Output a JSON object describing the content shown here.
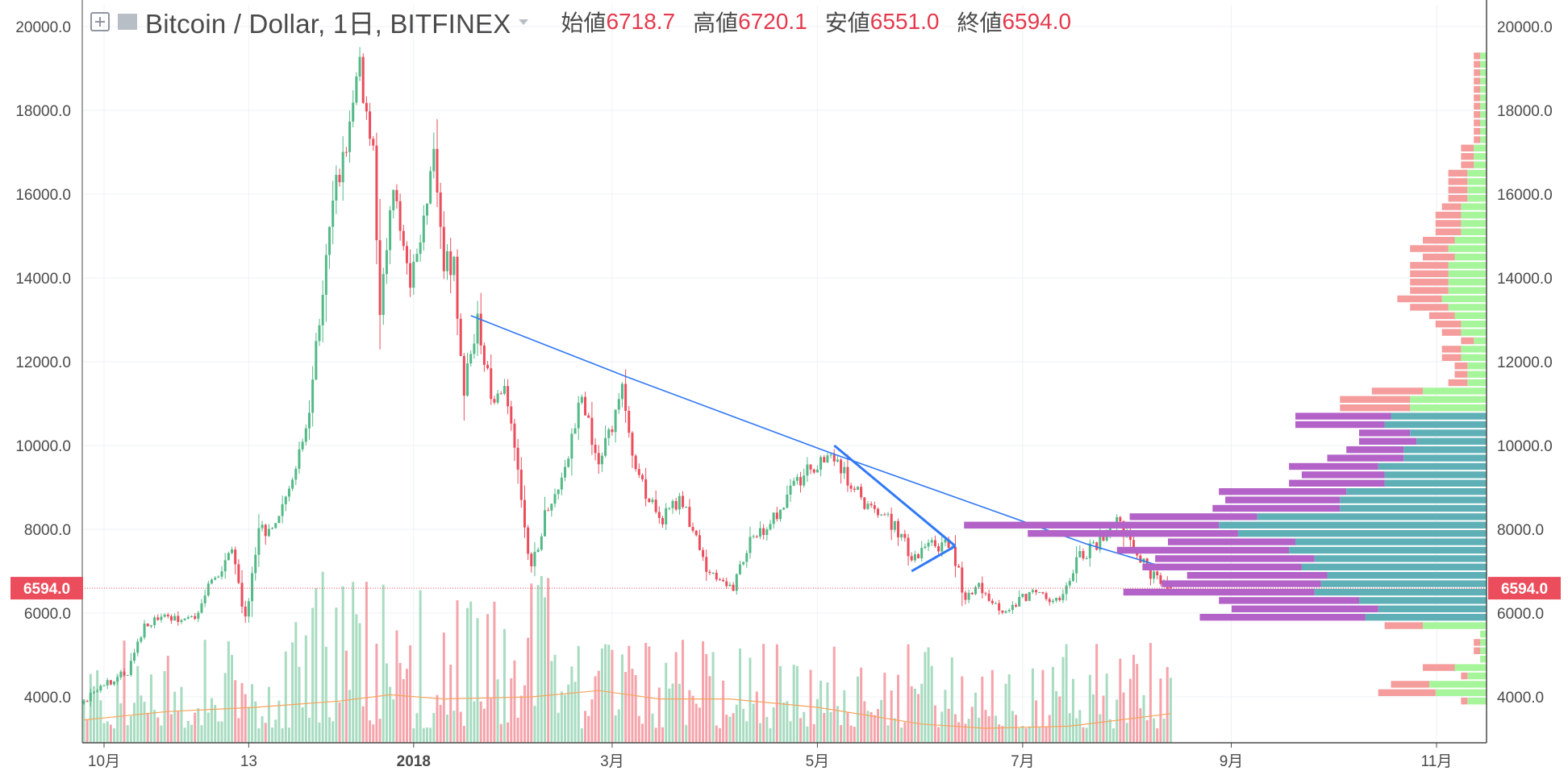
{
  "header": {
    "symbol": "Bitcoin / Dollar, 1日, BITFINEX",
    "open_label": "始値",
    "open_value": "6718.7",
    "high_label": "高値",
    "high_value": "6720.1",
    "low_label": "安値",
    "low_value": "6551.0",
    "close_label": "終値",
    "close_value": "6594.0"
  },
  "icons": {
    "toggle": "plus-square-icon",
    "flag": "flag-icon",
    "menu": "chevron-down-icon"
  },
  "colors": {
    "up": "#53b987",
    "down": "#eb4d5c",
    "volume_up": "#a8dcc1",
    "volume_down": "#f5a4ab",
    "trendline": "#3179f5",
    "ma": "#f7a35c",
    "price_badge": "#eb4d5c",
    "price_line": "#eb4d5c",
    "vp_up_highlight": "#5fb0b6",
    "vp_down_highlight": "#b362c7",
    "vp_up": "#a6f59b",
    "vp_down": "#f59c9c",
    "grid": "#eef2f4",
    "axis_text": "#4a4a4a"
  },
  "chart_data": {
    "type": "candlestick",
    "title": "Bitcoin / Dollar, 1日, BITFINEX",
    "timeframe": "1日",
    "date_range": [
      "2017-09-25",
      "2018-08-14"
    ],
    "y_axis": {
      "ylim": [
        3000,
        20500
      ],
      "ticks": [
        "4000.0",
        "6000.0",
        "8000.0",
        "10000.0",
        "12000.0",
        "14000.0",
        "16000.0",
        "18000.0",
        "20000.0"
      ],
      "scale": "linear"
    },
    "x_axis": {
      "tick_labels": [
        "10月",
        "13",
        "2018",
        "3月",
        "5月",
        "7月",
        "9月",
        "11月"
      ],
      "tick_dates": [
        "2017-10-01",
        "2017-11-13",
        "2018-01-01",
        "2018-03-01",
        "2018-05-01",
        "2018-07-01",
        "2018-09-01",
        "2018-11-01"
      ]
    },
    "last_price": "6594.0",
    "last_ohlc": {
      "open": 6718.7,
      "high": 6720.1,
      "low": 6551.0,
      "close": 6594.0
    },
    "price_path": [
      [
        "2017-09-25",
        3900
      ],
      [
        "2017-10-01",
        4300
      ],
      [
        "2017-10-08",
        4600
      ],
      [
        "2017-10-13",
        5700
      ],
      [
        "2017-10-20",
        5900
      ],
      [
        "2017-10-28",
        5800
      ],
      [
        "2017-11-02",
        6800
      ],
      [
        "2017-11-08",
        7400
      ],
      [
        "2017-11-12",
        5850
      ],
      [
        "2017-11-16",
        7900
      ],
      [
        "2017-11-22",
        8200
      ],
      [
        "2017-11-28",
        9700
      ],
      [
        "2017-12-01",
        10900
      ],
      [
        "2017-12-06",
        14500
      ],
      [
        "2017-12-08",
        16000
      ],
      [
        "2017-12-12",
        17200
      ],
      [
        "2017-12-16",
        19000
      ],
      [
        "2017-12-20",
        16900
      ],
      [
        "2017-12-22",
        13400
      ],
      [
        "2017-12-26",
        16000
      ],
      [
        "2017-12-31",
        13900
      ],
      [
        "2018-01-04",
        15500
      ],
      [
        "2018-01-07",
        17100
      ],
      [
        "2018-01-10",
        14400
      ],
      [
        "2018-01-13",
        14200
      ],
      [
        "2018-01-16",
        11400
      ],
      [
        "2018-01-20",
        12900
      ],
      [
        "2018-01-24",
        11200
      ],
      [
        "2018-01-28",
        11500
      ],
      [
        "2018-02-01",
        9300
      ],
      [
        "2018-02-05",
        7000
      ],
      [
        "2018-02-10",
        8600
      ],
      [
        "2018-02-15",
        9500
      ],
      [
        "2018-02-20",
        11200
      ],
      [
        "2018-02-25",
        9600
      ],
      [
        "2018-03-01",
        10400
      ],
      [
        "2018-03-04",
        11500
      ],
      [
        "2018-03-08",
        9400
      ],
      [
        "2018-03-15",
        8200
      ],
      [
        "2018-03-22",
        8700
      ],
      [
        "2018-03-29",
        7000
      ],
      [
        "2018-04-06",
        6600
      ],
      [
        "2018-04-12",
        7900
      ],
      [
        "2018-04-17",
        8100
      ],
      [
        "2018-04-24",
        9100
      ],
      [
        "2018-04-29",
        9400
      ],
      [
        "2018-05-05",
        9700
      ],
      [
        "2018-05-10",
        9200
      ],
      [
        "2018-05-15",
        8600
      ],
      [
        "2018-05-22",
        8300
      ],
      [
        "2018-05-29",
        7400
      ],
      [
        "2018-06-05",
        7600
      ],
      [
        "2018-06-10",
        7600
      ],
      [
        "2018-06-14",
        6300
      ],
      [
        "2018-06-18",
        6700
      ],
      [
        "2018-06-24",
        6100
      ],
      [
        "2018-06-30",
        6300
      ],
      [
        "2018-07-06",
        6600
      ],
      [
        "2018-07-12",
        6200
      ],
      [
        "2018-07-17",
        7300
      ],
      [
        "2018-07-24",
        7700
      ],
      [
        "2018-07-28",
        8200
      ],
      [
        "2018-08-02",
        7800
      ],
      [
        "2018-08-07",
        7000
      ],
      [
        "2018-08-11",
        6700
      ],
      [
        "2018-08-14",
        6594
      ]
    ],
    "volume_ma_path": [
      [
        "2017-09-25",
        3450
      ],
      [
        "2017-10-20",
        3650
      ],
      [
        "2017-11-15",
        3750
      ],
      [
        "2017-12-10",
        3900
      ],
      [
        "2017-12-25",
        4050
      ],
      [
        "2018-01-10",
        3950
      ],
      [
        "2018-02-05",
        4000
      ],
      [
        "2018-02-25",
        4150
      ],
      [
        "2018-03-15",
        3950
      ],
      [
        "2018-04-05",
        3950
      ],
      [
        "2018-05-01",
        3750
      ],
      [
        "2018-06-01",
        3350
      ],
      [
        "2018-06-20",
        3250
      ],
      [
        "2018-07-15",
        3300
      ],
      [
        "2018-08-14",
        3600
      ]
    ],
    "trendlines": [
      {
        "points": [
          [
            "2018-01-18",
            13100
          ],
          [
            "2018-03-05",
            11650
          ],
          [
            "2018-05-04",
            9850
          ],
          [
            "2018-07-20",
            7650
          ],
          [
            "2018-08-14",
            7050
          ]
        ]
      },
      {
        "points": [
          [
            "2018-05-06",
            10000
          ],
          [
            "2018-06-11",
            7600
          ]
        ]
      },
      {
        "points": [
          [
            "2018-05-29",
            7000
          ],
          [
            "2018-06-11",
            7600
          ]
        ]
      }
    ],
    "volume_profile": {
      "unit_price_step": 200,
      "rows": [
        [
          3900,
          3,
          1
        ],
        [
          4100,
          8,
          9
        ],
        [
          4300,
          9,
          6
        ],
        [
          4500,
          3,
          1
        ],
        [
          4700,
          5,
          5
        ],
        [
          4900,
          1,
          0
        ],
        [
          5100,
          1,
          1
        ],
        [
          5300,
          1,
          1
        ],
        [
          5500,
          1,
          0
        ],
        [
          5700,
          10,
          6
        ],
        [
          5900,
          19,
          26
        ],
        [
          6100,
          17,
          23
        ],
        [
          6300,
          20,
          22
        ],
        [
          6500,
          27,
          30
        ],
        [
          6700,
          26,
          25
        ],
        [
          6900,
          25,
          22
        ],
        [
          7100,
          29,
          25
        ],
        [
          7300,
          27,
          25
        ],
        [
          7500,
          31,
          27
        ],
        [
          7700,
          30,
          20
        ],
        [
          7900,
          39,
          33
        ],
        [
          8100,
          42,
          40
        ],
        [
          8300,
          36,
          20
        ],
        [
          8500,
          23,
          20
        ],
        [
          8700,
          23,
          18
        ],
        [
          8900,
          22,
          20
        ],
        [
          9100,
          16,
          15
        ],
        [
          9300,
          16,
          13
        ],
        [
          9500,
          17,
          14
        ],
        [
          9700,
          13,
          12
        ],
        [
          9900,
          13,
          9
        ],
        [
          10100,
          11,
          9
        ],
        [
          10300,
          12,
          8
        ],
        [
          10500,
          16,
          14
        ],
        [
          10700,
          15,
          15
        ],
        [
          10900,
          12,
          11
        ],
        [
          11100,
          12,
          11
        ],
        [
          11300,
          10,
          8
        ],
        [
          11500,
          3,
          3
        ],
        [
          11700,
          3,
          2
        ],
        [
          11900,
          3,
          2
        ],
        [
          12100,
          4,
          3
        ],
        [
          12300,
          4,
          3
        ],
        [
          12500,
          2,
          2
        ],
        [
          12700,
          4,
          3
        ],
        [
          12900,
          4,
          4
        ],
        [
          13100,
          5,
          4
        ],
        [
          13300,
          6,
          6
        ],
        [
          13500,
          7,
          7
        ],
        [
          13700,
          6,
          6
        ],
        [
          13900,
          6,
          6
        ],
        [
          14100,
          6,
          6
        ],
        [
          14300,
          6,
          6
        ],
        [
          14500,
          5,
          5
        ],
        [
          14700,
          6,
          6
        ],
        [
          14900,
          5,
          5
        ],
        [
          15100,
          4,
          4
        ],
        [
          15300,
          4,
          4
        ],
        [
          15500,
          4,
          4
        ],
        [
          15700,
          4,
          3
        ],
        [
          15900,
          3,
          3
        ],
        [
          16100,
          3,
          3
        ],
        [
          16300,
          3,
          3
        ],
        [
          16500,
          3,
          3
        ],
        [
          16700,
          2,
          2
        ],
        [
          16900,
          2,
          2
        ],
        [
          17100,
          2,
          2
        ],
        [
          17300,
          1,
          1
        ],
        [
          17500,
          1,
          1
        ],
        [
          17700,
          1,
          1
        ],
        [
          17900,
          1,
          1
        ],
        [
          18100,
          1,
          1
        ],
        [
          18300,
          1,
          1
        ],
        [
          18500,
          1,
          1
        ],
        [
          18700,
          1,
          1
        ],
        [
          18900,
          1,
          1
        ],
        [
          19100,
          1,
          1
        ],
        [
          19300,
          1,
          1
        ]
      ],
      "value_area_range": [
        5800,
        10800
      ]
    }
  }
}
